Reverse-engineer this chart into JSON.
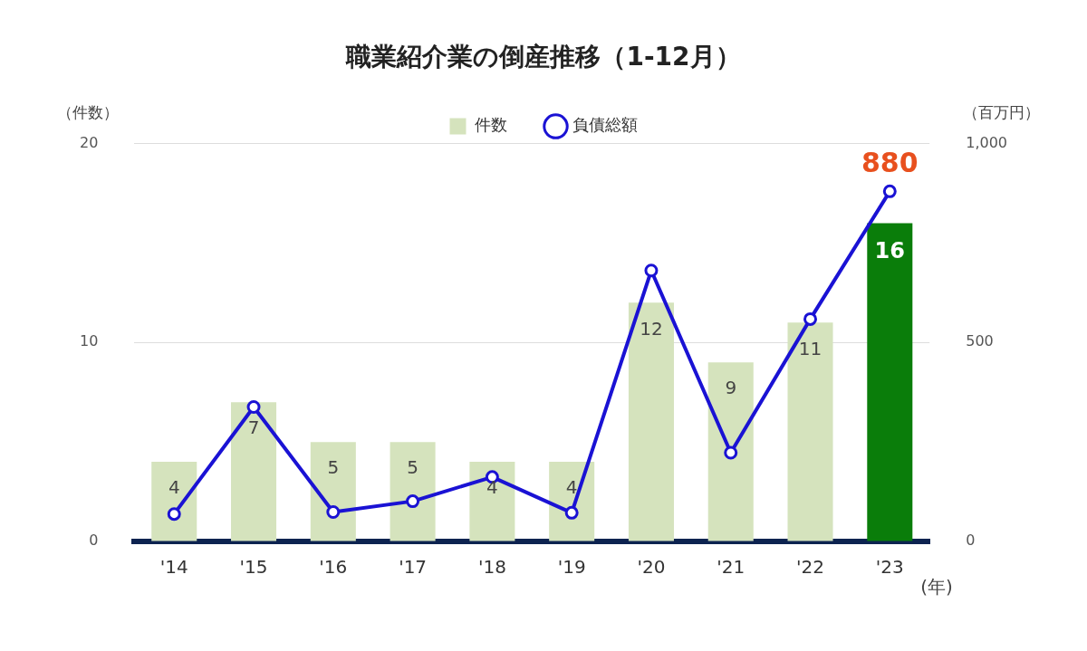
{
  "chart_data": {
    "type": "bar",
    "title": "職業紹介業の倒産推移（1-12月）",
    "ylabel": "（件数）",
    "y2label": "（百万円）",
    "xlabel": "(年)",
    "categories": [
      "'14",
      "'15",
      "'16",
      "'17",
      "'18",
      "'19",
      "'20",
      "'21",
      "'22",
      "'23"
    ],
    "series": [
      {
        "name": "件数",
        "color": "#d5e3bd",
        "colors": [
          "#d5e3bd",
          "#d5e3bd",
          "#d5e3bd",
          "#d5e3bd",
          "#d5e3bd",
          "#d5e3bd",
          "#d5e3bd",
          "#d5e3bd",
          "#d5e3bd",
          "#0a7d0a"
        ],
        "values": [
          4,
          7,
          5,
          5,
          4,
          4,
          12,
          9,
          11,
          16
        ],
        "value_labels": [
          "4",
          "7",
          "5",
          "5",
          "4",
          "4",
          "12",
          "9",
          "11",
          "16"
        ]
      },
      {
        "name": "負債総額",
        "type": "line",
        "axis": "y2",
        "color": "#1a12d4",
        "values": [
          69,
          338,
          74,
          101,
          162,
          72,
          681,
          223,
          559,
          880
        ],
        "value_labels": [
          null,
          null,
          null,
          null,
          null,
          null,
          null,
          null,
          null,
          "880"
        ]
      }
    ],
    "ylim": [
      0,
      20
    ],
    "yticks": [
      0,
      10,
      20
    ],
    "y2lim": [
      0,
      1000
    ],
    "y2ticks": [
      0,
      500,
      {
        "value": 1000,
        "label": "1,000"
      }
    ],
    "grid": "y",
    "legend": "top",
    "marker": "circle",
    "line_style": "solid"
  }
}
